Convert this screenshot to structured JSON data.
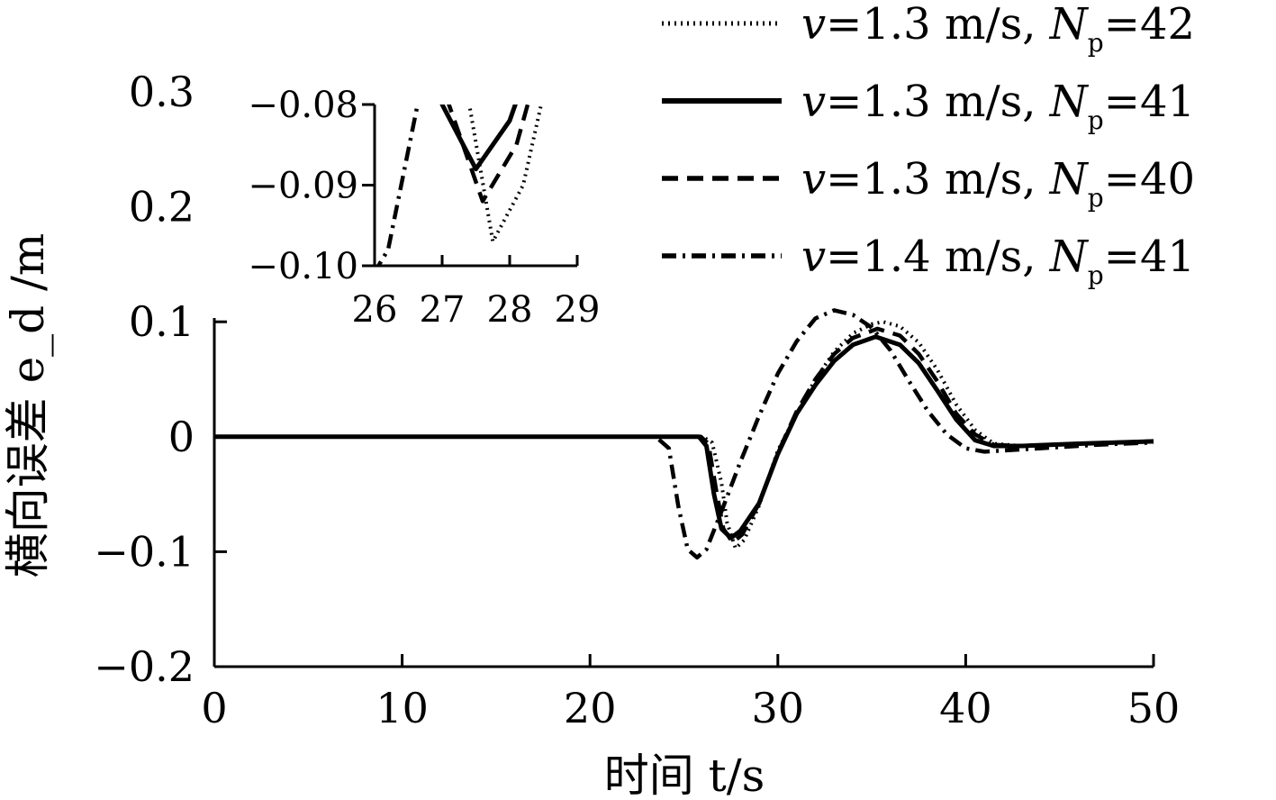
{
  "chart_data": {
    "type": "line",
    "title": "",
    "xlabel": "时间 t/s",
    "ylabel": "横向误差 e_d /m",
    "xlim": [
      0,
      50
    ],
    "ylim": [
      -0.2,
      0.3
    ],
    "xticks": [
      0,
      10,
      20,
      30,
      40,
      50
    ],
    "yticks": [
      -0.2,
      -0.1,
      0,
      0.1,
      0.2,
      0.3
    ],
    "xtick_labels": [
      "0",
      "10",
      "20",
      "30",
      "40",
      "50"
    ],
    "ytick_labels": [
      "−0.2",
      "−0.1",
      "0",
      "0.1",
      "0.2",
      "0.3"
    ],
    "grid": false,
    "legend_position": "top-right",
    "series": [
      {
        "name": "v=1.3 m/s, Np=42",
        "legend": {
          "v": "v",
          "eq1": "=1.3 m/s, ",
          "N": "N",
          "sub": "p",
          "eq2": "=42"
        },
        "style": "dotted",
        "x": [
          0,
          23.5,
          26.0,
          26.5,
          27.0,
          27.3,
          27.75,
          28.2,
          29.0,
          30.0,
          31.0,
          32.0,
          33.0,
          34.0,
          35.0,
          35.6,
          36.5,
          37.5,
          38.5,
          39.5,
          40.5,
          41.5,
          43.0,
          46.0,
          50.0
        ],
        "y": [
          0,
          0,
          0,
          -0.005,
          -0.04,
          -0.075,
          -0.097,
          -0.09,
          -0.06,
          -0.012,
          0.02,
          0.05,
          0.074,
          0.09,
          0.098,
          0.1,
          0.096,
          0.082,
          0.058,
          0.028,
          0.006,
          -0.006,
          -0.008,
          -0.006,
          -0.004
        ]
      },
      {
        "name": "v=1.3 m/s, Np=41",
        "legend": {
          "v": "v",
          "eq1": "=1.3 m/s, ",
          "N": "N",
          "sub": "p",
          "eq2": "=41"
        },
        "style": "solid",
        "x": [
          0,
          23.5,
          25.8,
          26.2,
          26.6,
          27.0,
          27.5,
          28.0,
          29.0,
          30.0,
          31.0,
          32.0,
          33.0,
          34.0,
          35.2,
          36.5,
          37.5,
          38.5,
          39.5,
          40.5,
          41.5,
          43.0,
          46.0,
          50.0
        ],
        "y": [
          0,
          0,
          0,
          -0.008,
          -0.05,
          -0.08,
          -0.088,
          -0.082,
          -0.058,
          -0.015,
          0.02,
          0.045,
          0.066,
          0.08,
          0.087,
          0.08,
          0.064,
          0.04,
          0.015,
          -0.003,
          -0.008,
          -0.008,
          -0.006,
          -0.004
        ]
      },
      {
        "name": "v=1.3 m/s, Np=40",
        "legend": {
          "v": "v",
          "eq1": "=1.3 m/s, ",
          "N": "N",
          "sub": "p",
          "eq2": "=40"
        },
        "style": "dashed",
        "x": [
          0,
          23.5,
          25.9,
          26.3,
          26.7,
          27.1,
          27.6,
          28.1,
          29.0,
          30.0,
          31.0,
          32.0,
          33.0,
          34.0,
          35.3,
          36.5,
          37.5,
          38.5,
          39.5,
          40.5,
          41.5,
          43.0,
          46.0,
          50.0
        ],
        "y": [
          0,
          0,
          0,
          -0.006,
          -0.045,
          -0.08,
          -0.092,
          -0.085,
          -0.058,
          -0.014,
          0.022,
          0.05,
          0.072,
          0.086,
          0.094,
          0.088,
          0.072,
          0.048,
          0.02,
          0.002,
          -0.007,
          -0.008,
          -0.006,
          -0.004
        ]
      },
      {
        "name": "v=1.4 m/s, Np=41",
        "legend": {
          "v": "v",
          "eq1": "=1.4 m/s, ",
          "N": "N",
          "sub": "p",
          "eq2": "=41"
        },
        "style": "dashdot",
        "x": [
          0,
          23.5,
          24.2,
          24.7,
          25.2,
          25.7,
          26.2,
          27.0,
          28.0,
          29.0,
          30.0,
          31.0,
          32.0,
          33.0,
          34.0,
          35.0,
          36.0,
          37.0,
          38.0,
          39.0,
          40.0,
          41.0,
          42.0,
          44.0,
          47.0,
          50.0
        ],
        "y": [
          0,
          0,
          -0.01,
          -0.06,
          -0.098,
          -0.105,
          -0.098,
          -0.065,
          -0.022,
          0.018,
          0.055,
          0.083,
          0.103,
          0.11,
          0.106,
          0.095,
          0.075,
          0.048,
          0.022,
          0.002,
          -0.01,
          -0.013,
          -0.012,
          -0.01,
          -0.007,
          -0.005
        ]
      }
    ],
    "inset": {
      "xlim": [
        26,
        29
      ],
      "ylim": [
        -0.1,
        -0.08
      ],
      "xticks": [
        26,
        27,
        28,
        29
      ],
      "yticks": [
        -0.1,
        -0.09,
        -0.08
      ],
      "xtick_labels": [
        "26",
        "27",
        "28",
        "29"
      ],
      "ytick_labels": [
        "−0.10",
        "−0.09",
        "−0.08"
      ]
    }
  }
}
